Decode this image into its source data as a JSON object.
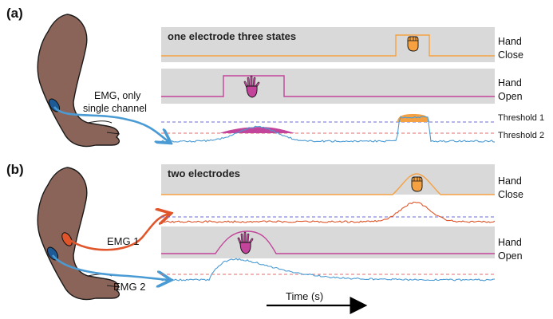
{
  "panel_a": {
    "letter": "(a)",
    "title": "one electrode three states",
    "emg_label_line1": "EMG, only",
    "emg_label_line2": "single channel",
    "close_label_line1": "Hand",
    "close_label_line2": "Close",
    "open_label_line1": "Hand",
    "open_label_line2": "Open",
    "threshold1": "Threshold 1",
    "threshold2": "Threshold 2"
  },
  "panel_b": {
    "letter": "(b)",
    "title": "two electrodes",
    "emg1_label": "EMG 1",
    "emg2_label": "EMG 2",
    "close_label_line1": "Hand",
    "close_label_line2": "Close",
    "open_label_line1": "Hand",
    "open_label_line2": "Open"
  },
  "time_axis_label": "Time (s)",
  "colors": {
    "orange": "#f5a142",
    "magenta": "#c2459b",
    "blue": "#4a9bd4",
    "red_emg": "#e0552a",
    "panel_gray": "#d9d9d9",
    "skin": "#8b6459",
    "threshold_blue": "#6b6bd6",
    "threshold_red": "#e06b6b"
  },
  "icons": [
    "arm-icon",
    "fist-icon",
    "open-hand-icon",
    "electrode-icon",
    "arrow-right-icon"
  ]
}
